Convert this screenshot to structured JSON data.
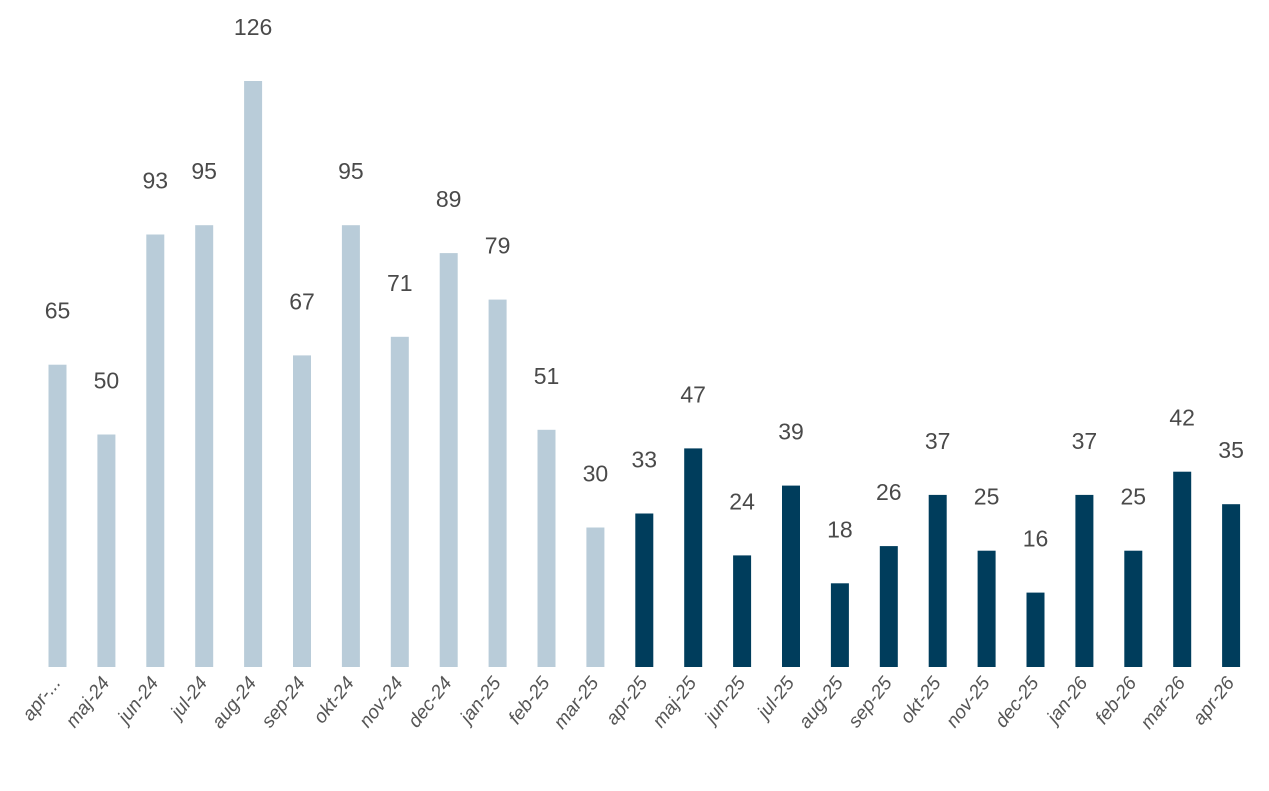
{
  "chart_data": {
    "type": "bar",
    "title": "",
    "xlabel": "",
    "ylabel": "",
    "ylim": [
      0,
      126
    ],
    "grid": false,
    "legend": "none",
    "categories": [
      "apr-...",
      "maj-24",
      "jun-24",
      "jul-24",
      "aug-24",
      "sep-24",
      "okt-24",
      "nov-24",
      "dec-24",
      "jan-25",
      "feb-25",
      "mar-25",
      "apr-25",
      "maj-25",
      "jun-25",
      "jul-25",
      "aug-25",
      "sep-25",
      "okt-25",
      "nov-25",
      "dec-25",
      "jan-26",
      "feb-26",
      "mar-26",
      "apr-26"
    ],
    "values": [
      65,
      50,
      93,
      95,
      126,
      67,
      95,
      71,
      89,
      79,
      51,
      30,
      33,
      47,
      24,
      39,
      18,
      26,
      37,
      25,
      16,
      37,
      25,
      42,
      35
    ],
    "colors": {
      "previous_period": "#b9ccd9",
      "current_period": "#003d5c"
    },
    "current_period_start_index": 12
  }
}
